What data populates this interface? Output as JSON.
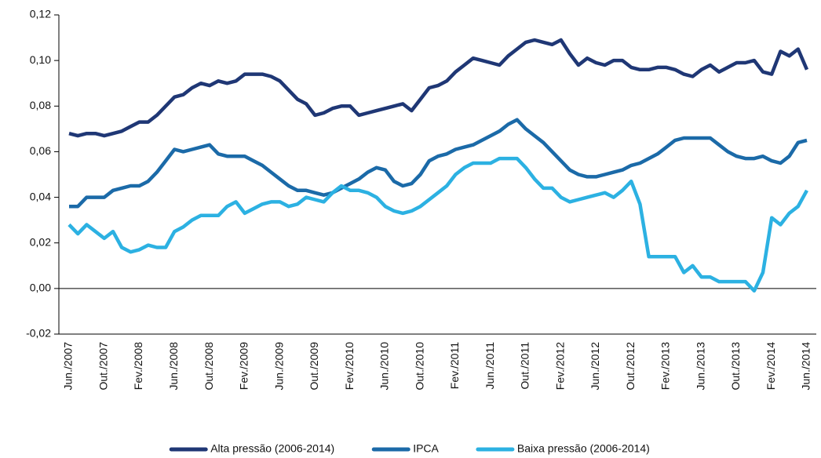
{
  "chart_data": {
    "type": "line",
    "categories": [
      "Jun./2007",
      null,
      null,
      null,
      "Out./2007",
      null,
      null,
      null,
      "Fev./2008",
      null,
      null,
      null,
      "Jun./2008",
      null,
      null,
      null,
      "Out./2008",
      null,
      null,
      null,
      "Fev./2009",
      null,
      null,
      null,
      "Jun./2009",
      null,
      null,
      null,
      "Out./2009",
      null,
      null,
      null,
      "Fev./2010",
      null,
      null,
      null,
      "Jun./2010",
      null,
      null,
      null,
      "Out./2010",
      null,
      null,
      null,
      "Fev./2011",
      null,
      null,
      null,
      "Jun./2011",
      null,
      null,
      null,
      "Out./2011",
      null,
      null,
      null,
      "Fev./2012",
      null,
      null,
      null,
      "Jun./2012",
      null,
      null,
      null,
      "Out./2012",
      null,
      null,
      null,
      "Fev./2013",
      null,
      null,
      null,
      "Jun./2013",
      null,
      null,
      null,
      "Out./2013",
      null,
      null,
      null,
      "Fev./2014",
      null,
      null,
      null,
      "Jun./2014"
    ],
    "series": [
      {
        "name": "Alta pressão (2006-2014)",
        "color": "#1f3775",
        "values": [
          0.068,
          0.067,
          0.068,
          0.068,
          0.067,
          0.068,
          0.069,
          0.071,
          0.073,
          0.073,
          0.076,
          0.08,
          0.084,
          0.085,
          0.088,
          0.09,
          0.089,
          0.091,
          0.09,
          0.091,
          0.094,
          0.094,
          0.094,
          0.093,
          0.091,
          0.087,
          0.083,
          0.081,
          0.076,
          0.077,
          0.079,
          0.08,
          0.08,
          0.076,
          0.077,
          0.078,
          0.079,
          0.08,
          0.081,
          0.078,
          0.083,
          0.088,
          0.089,
          0.091,
          0.095,
          0.098,
          0.101,
          0.1,
          0.099,
          0.098,
          0.102,
          0.105,
          0.108,
          0.109,
          0.108,
          0.107,
          0.109,
          0.103,
          0.098,
          0.101,
          0.099,
          0.098,
          0.1,
          0.1,
          0.097,
          0.096,
          0.096,
          0.097,
          0.097,
          0.096,
          0.094,
          0.093,
          0.096,
          0.098,
          0.095,
          0.097,
          0.099,
          0.099,
          0.1,
          0.095,
          0.094,
          0.104,
          0.102,
          0.105,
          0.096
        ]
      },
      {
        "name": "IPCA",
        "color": "#1b6aa8",
        "values": [
          0.036,
          0.036,
          0.04,
          0.04,
          0.04,
          0.043,
          0.044,
          0.045,
          0.045,
          0.047,
          0.051,
          0.056,
          0.061,
          0.06,
          0.061,
          0.062,
          0.063,
          0.059,
          0.058,
          0.058,
          0.058,
          0.056,
          0.054,
          0.051,
          0.048,
          0.045,
          0.043,
          0.043,
          0.042,
          0.041,
          0.042,
          0.044,
          0.046,
          0.048,
          0.051,
          0.053,
          0.052,
          0.047,
          0.045,
          0.046,
          0.05,
          0.056,
          0.058,
          0.059,
          0.061,
          0.062,
          0.063,
          0.065,
          0.067,
          0.069,
          0.072,
          0.074,
          0.07,
          0.067,
          0.064,
          0.06,
          0.056,
          0.052,
          0.05,
          0.049,
          0.049,
          0.05,
          0.051,
          0.052,
          0.054,
          0.055,
          0.057,
          0.059,
          0.062,
          0.065,
          0.066,
          0.066,
          0.066,
          0.066,
          0.063,
          0.06,
          0.058,
          0.057,
          0.057,
          0.058,
          0.056,
          0.055,
          0.058,
          0.064,
          0.065
        ]
      },
      {
        "name": "Baixa pressão (2006-2014)",
        "color": "#2cb1e2",
        "values": [
          0.028,
          0.024,
          0.028,
          0.025,
          0.022,
          0.025,
          0.018,
          0.016,
          0.017,
          0.019,
          0.018,
          0.018,
          0.025,
          0.027,
          0.03,
          0.032,
          0.032,
          0.032,
          0.036,
          0.038,
          0.033,
          0.035,
          0.037,
          0.038,
          0.038,
          0.036,
          0.037,
          0.04,
          0.039,
          0.038,
          0.042,
          0.045,
          0.043,
          0.043,
          0.042,
          0.04,
          0.036,
          0.034,
          0.033,
          0.034,
          0.036,
          0.039,
          0.042,
          0.045,
          0.05,
          0.053,
          0.055,
          0.055,
          0.055,
          0.057,
          0.057,
          0.057,
          0.053,
          0.048,
          0.044,
          0.044,
          0.04,
          0.038,
          0.039,
          0.04,
          0.041,
          0.042,
          0.04,
          0.043,
          0.047,
          0.037,
          0.014,
          0.014,
          0.014,
          0.014,
          0.007,
          0.01,
          0.005,
          0.005,
          0.003,
          0.003,
          0.003,
          0.003,
          -0.001,
          0.007,
          0.031,
          0.028,
          0.033,
          0.036,
          0.043
        ]
      }
    ],
    "ylim": [
      -0.02,
      0.12
    ],
    "yticks": [
      {
        "value": -0.02,
        "label": "-0,02"
      },
      {
        "value": 0,
        "label": "0,00"
      },
      {
        "value": 0.02,
        "label": "0,02"
      },
      {
        "value": 0.04,
        "label": "0,04"
      },
      {
        "value": 0.06,
        "label": "0,06"
      },
      {
        "value": 0.08,
        "label": "0,08"
      },
      {
        "value": 0.1,
        "label": "0,10"
      },
      {
        "value": 0.12,
        "label": "0,12"
      }
    ],
    "legend": "bottom"
  }
}
